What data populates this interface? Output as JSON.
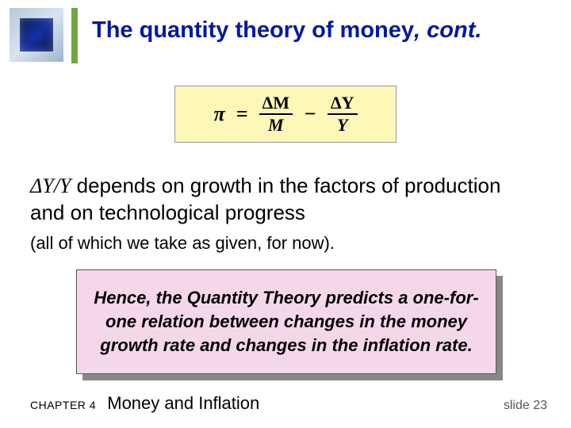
{
  "title_main": "The quantity theory of money",
  "title_suffix": ", cont.",
  "equation": {
    "lhs": "π",
    "eq": "=",
    "term1_num": "ΔM",
    "term1_den": "M",
    "minus": "−",
    "term2_num": "ΔY",
    "term2_den": "Y",
    "box_bg": "#fdf7b8"
  },
  "body": {
    "line1_sym": "ΔY/Y",
    "line1_rest": "  depends on growth in the factors of production and on technological progress",
    "line2": "(all of which we take as given, for now)."
  },
  "callout": {
    "text": "Hence, the Quantity Theory predicts a one-for-one relation between changes in the money growth rate and changes in the inflation rate.",
    "bg": "#f4d8ea"
  },
  "footer": {
    "chapter_label": "CHAPTER 4",
    "chapter_title": "Money and Inflation",
    "slide": "slide 23"
  },
  "colors": {
    "title": "#0218a0",
    "accent_bar": "#6fa843"
  }
}
